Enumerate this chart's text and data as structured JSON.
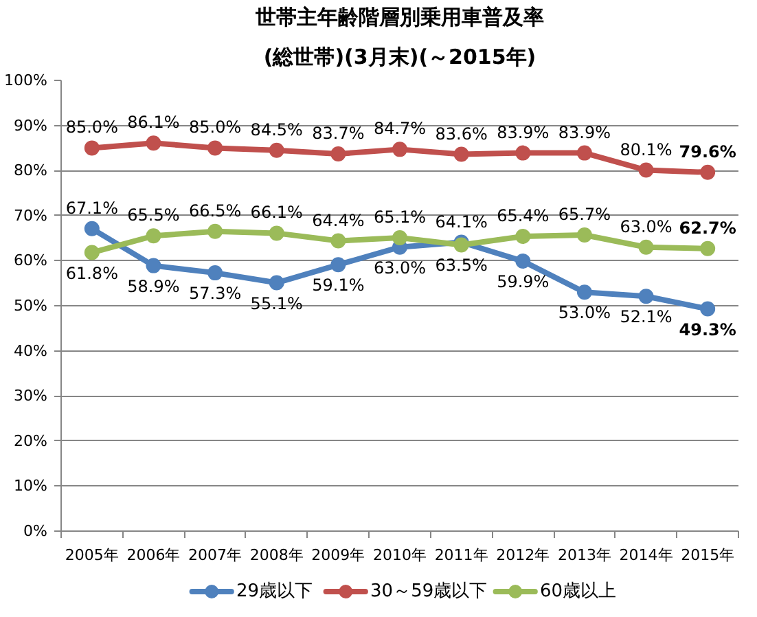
{
  "chart_data": {
    "type": "line",
    "title": "世帯主年齢階層別乗用車普及率",
    "subtitle": "(総世帯)(3月末)(～2015年)",
    "categories": [
      "2005年",
      "2006年",
      "2007年",
      "2008年",
      "2009年",
      "2010年",
      "2011年",
      "2012年",
      "2013年",
      "2014年",
      "2015年"
    ],
    "series": [
      {
        "name": "29歳以下",
        "color": "#4f81bd",
        "values": [
          67.1,
          58.9,
          57.3,
          55.1,
          59.1,
          63.0,
          64.1,
          59.9,
          53.0,
          52.1,
          49.3
        ],
        "value_labels": [
          "67.1%",
          "58.9%",
          "57.3%",
          "55.1%",
          "59.1%",
          "63.0%",
          "64.1%",
          "59.9%",
          "53.0%",
          "52.1%",
          "49.3%"
        ]
      },
      {
        "name": "30～59歳以下",
        "color": "#c0504d",
        "values": [
          85.0,
          86.1,
          85.0,
          84.5,
          83.7,
          84.7,
          83.6,
          83.9,
          83.9,
          80.1,
          79.6
        ],
        "value_labels": [
          "85.0%",
          "86.1%",
          "85.0%",
          "84.5%",
          "83.7%",
          "84.7%",
          "83.6%",
          "83.9%",
          "83.9%",
          "80.1%",
          "79.6%"
        ]
      },
      {
        "name": "60歳以上",
        "color": "#9bbb59",
        "values": [
          61.8,
          65.5,
          66.5,
          66.1,
          64.4,
          65.1,
          63.5,
          65.4,
          65.7,
          63.0,
          62.7
        ],
        "value_labels": [
          "61.8%",
          "65.5%",
          "66.5%",
          "66.1%",
          "64.4%",
          "65.1%",
          "63.5%",
          "65.4%",
          "65.7%",
          "63.0%",
          "62.7%"
        ]
      }
    ],
    "ylim": [
      0,
      100
    ],
    "yticks": [
      {
        "value": 0,
        "label": "0%"
      },
      {
        "value": 10,
        "label": "10%"
      },
      {
        "value": 20,
        "label": "20%"
      },
      {
        "value": 30,
        "label": "30%"
      },
      {
        "value": 40,
        "label": "40%"
      },
      {
        "value": 50,
        "label": "50%"
      },
      {
        "value": 60,
        "label": "60%"
      },
      {
        "value": 70,
        "label": "70%"
      },
      {
        "value": 80,
        "label": "80%"
      },
      {
        "value": 90,
        "label": "90%"
      },
      {
        "value": 100,
        "label": "100%"
      }
    ],
    "grid": "y",
    "legend": "bottom",
    "marker": "circle",
    "line_style": "solid"
  }
}
